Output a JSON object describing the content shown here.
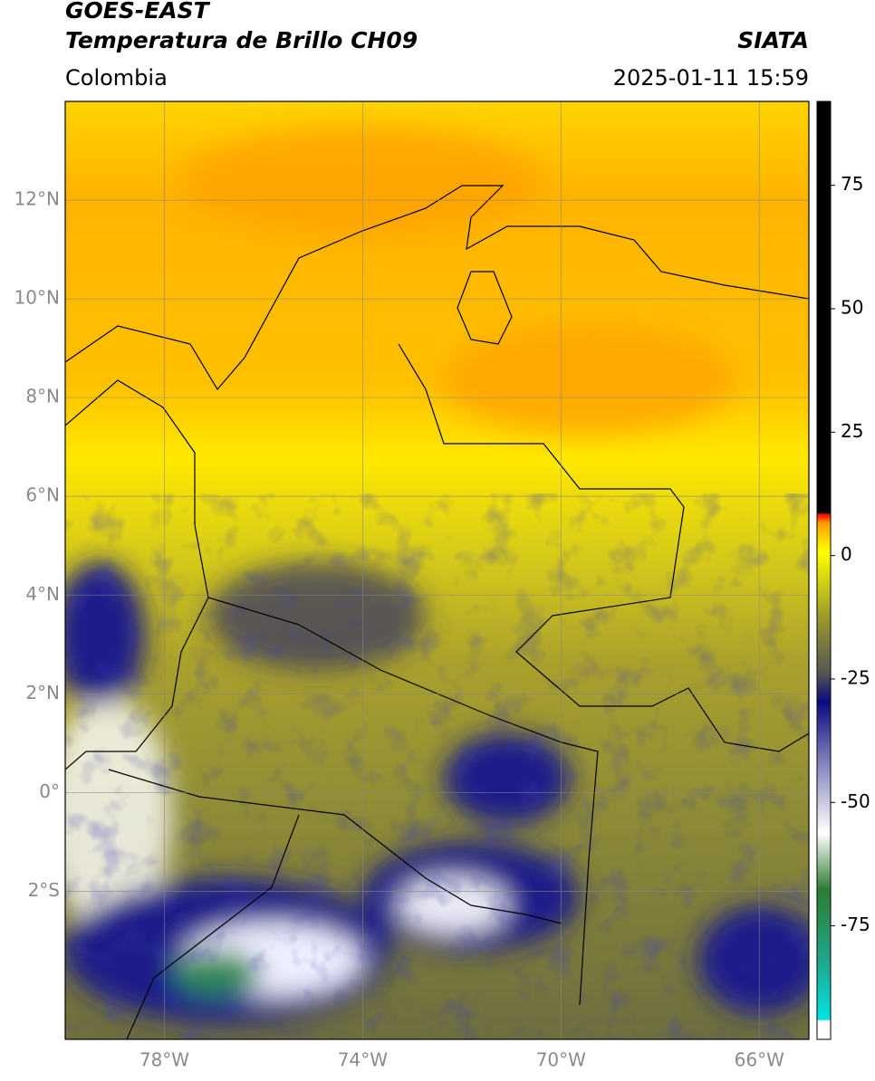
{
  "header": {
    "product": "GOES-EAST",
    "title": "Temperatura de Brillo CH09",
    "region": "Colombia",
    "source": "SIATA",
    "datetime": "2025-01-11 15:59"
  },
  "map": {
    "lon_range": [
      -80,
      -65
    ],
    "lat_range": [
      -5,
      14
    ],
    "lon_ticks": [
      {
        "value": -78,
        "label": "78°W"
      },
      {
        "value": -74,
        "label": "74°W"
      },
      {
        "value": -70,
        "label": "70°W"
      },
      {
        "value": -66,
        "label": "66°W"
      }
    ],
    "lat_ticks": [
      {
        "value": 12,
        "label": "12°N"
      },
      {
        "value": 10,
        "label": "10°N"
      },
      {
        "value": 8,
        "label": "8°N"
      },
      {
        "value": 6,
        "label": "6°N"
      },
      {
        "value": 4,
        "label": "4°N"
      },
      {
        "value": 2,
        "label": "2°N"
      },
      {
        "value": 0,
        "label": "0°"
      },
      {
        "value": -2,
        "label": "2°S"
      }
    ]
  },
  "colorbar": {
    "range": [
      -98,
      92
    ],
    "ticks": [
      75,
      50,
      25,
      0,
      -25,
      -50,
      -75
    ]
  }
}
